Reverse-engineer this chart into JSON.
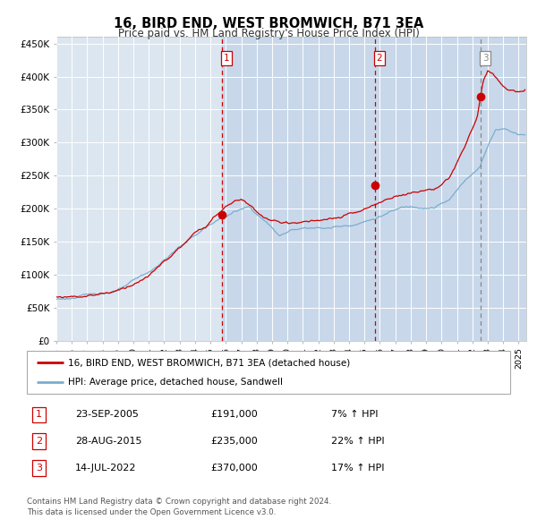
{
  "title": "16, BIRD END, WEST BROMWICH, B71 3EA",
  "subtitle": "Price paid vs. HM Land Registry's House Price Index (HPI)",
  "background_color": "#ffffff",
  "plot_bg_color": "#dce6f0",
  "grid_color": "#ffffff",
  "ylim": [
    0,
    460000
  ],
  "yticks": [
    0,
    50000,
    100000,
    150000,
    200000,
    250000,
    300000,
    350000,
    400000,
    450000
  ],
  "ytick_labels": [
    "£0",
    "£50K",
    "£100K",
    "£150K",
    "£200K",
    "£250K",
    "£300K",
    "£350K",
    "£400K",
    "£450K"
  ],
  "x_start_year": 1995,
  "x_end_year": 2025,
  "sale_year_floats": [
    2005.729,
    2015.66,
    2022.537
  ],
  "sale_prices": [
    191000,
    235000,
    370000
  ],
  "sale_labels": [
    "1",
    "2",
    "3"
  ],
  "sale_hpi_pct": [
    "7%",
    "22%",
    "17%"
  ],
  "sale_dates_str": [
    "23-SEP-2005",
    "28-AUG-2015",
    "14-JUL-2022"
  ],
  "vline_colors_r": [
    "#cc0000",
    "#cc0000",
    "#888888"
  ],
  "legend_property_label": "16, BIRD END, WEST BROMWICH, B71 3EA (detached house)",
  "legend_hpi_label": "HPI: Average price, detached house, Sandwell",
  "property_line_color": "#cc0000",
  "hpi_line_color": "#7aadcf",
  "marker_color": "#cc0000",
  "shade_color": "#c8d8ea",
  "footnote": "Contains HM Land Registry data © Crown copyright and database right 2024.\nThis data is licensed under the Open Government Licence v3.0."
}
